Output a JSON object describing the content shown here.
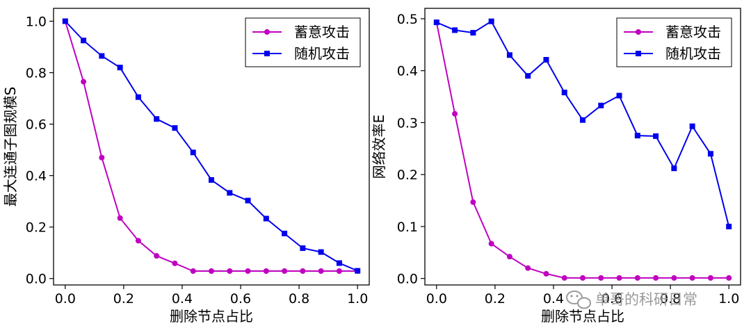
{
  "chart_data": [
    {
      "type": "line",
      "title": "",
      "xlabel": "删除节点占比",
      "ylabel": "最大连通子图规模S",
      "xlim": [
        -0.04,
        1.04
      ],
      "ylim": [
        -0.025,
        1.05
      ],
      "xticks": [
        0.0,
        0.2,
        0.4,
        0.6,
        0.8,
        1.0
      ],
      "xtick_labels": [
        "0.0",
        "0.2",
        "0.4",
        "0.6",
        "0.8",
        "1.0"
      ],
      "yticks": [
        0.0,
        0.2,
        0.4,
        0.6,
        0.8,
        1.0
      ],
      "ytick_labels": [
        "0.0",
        "0.2",
        "0.4",
        "0.6",
        "0.8",
        "1.0"
      ],
      "legend_position": "top-right",
      "series": [
        {
          "name": "蓄意攻击",
          "color": "#c000c0",
          "marker": "circle",
          "x": [
            0.0,
            0.0625,
            0.125,
            0.1875,
            0.25,
            0.3125,
            0.375,
            0.4375,
            0.5,
            0.5625,
            0.625,
            0.6875,
            0.75,
            0.8125,
            0.875,
            0.9375,
            1.0
          ],
          "y": [
            1.0,
            0.765,
            0.47,
            0.235,
            0.147,
            0.088,
            0.059,
            0.029,
            0.029,
            0.029,
            0.029,
            0.029,
            0.029,
            0.029,
            0.029,
            0.029,
            0.029
          ]
        },
        {
          "name": "随机攻击",
          "color": "#0000ee",
          "marker": "square",
          "x": [
            0.0,
            0.0625,
            0.125,
            0.1875,
            0.25,
            0.3125,
            0.375,
            0.4375,
            0.5,
            0.5625,
            0.625,
            0.6875,
            0.75,
            0.8125,
            0.875,
            0.9375,
            1.0
          ],
          "y": [
            1.0,
            0.925,
            0.865,
            0.82,
            0.705,
            0.62,
            0.585,
            0.49,
            0.383,
            0.333,
            0.303,
            0.233,
            0.175,
            0.118,
            0.103,
            0.06,
            0.03
          ]
        }
      ]
    },
    {
      "type": "line",
      "title": "",
      "xlabel": "删除节点占比",
      "ylabel": "网络效率E",
      "xlim": [
        -0.04,
        1.04
      ],
      "ylim": [
        -0.0125,
        0.52
      ],
      "xticks": [
        0.0,
        0.2,
        0.4,
        0.6,
        0.8,
        1.0
      ],
      "xtick_labels": [
        "0.0",
        "0.2",
        "0.4",
        "0.6",
        "0.8",
        "1.0"
      ],
      "yticks": [
        0.0,
        0.1,
        0.2,
        0.3,
        0.4,
        0.5
      ],
      "ytick_labels": [
        "0.0",
        "0.1",
        "0.2",
        "0.3",
        "0.4",
        "0.5"
      ],
      "legend_position": "top-right",
      "series": [
        {
          "name": "蓄意攻击",
          "color": "#c000c0",
          "marker": "circle",
          "x": [
            0.0,
            0.0625,
            0.125,
            0.1875,
            0.25,
            0.3125,
            0.375,
            0.4375,
            0.5,
            0.5625,
            0.625,
            0.6875,
            0.75,
            0.8125,
            0.875,
            0.9375,
            1.0
          ],
          "y": [
            0.493,
            0.317,
            0.147,
            0.067,
            0.042,
            0.02,
            0.009,
            0.001,
            0.001,
            0.001,
            0.001,
            0.001,
            0.001,
            0.001,
            0.001,
            0.001,
            0.001
          ]
        },
        {
          "name": "随机攻击",
          "color": "#0000ee",
          "marker": "square",
          "x": [
            0.0,
            0.0625,
            0.125,
            0.1875,
            0.25,
            0.3125,
            0.375,
            0.4375,
            0.5,
            0.5625,
            0.625,
            0.6875,
            0.75,
            0.8125,
            0.875,
            0.9375,
            1.0
          ],
          "y": [
            0.493,
            0.478,
            0.473,
            0.495,
            0.43,
            0.39,
            0.421,
            0.358,
            0.305,
            0.333,
            0.352,
            0.275,
            0.274,
            0.212,
            0.293,
            0.24,
            0.1
          ]
        }
      ]
    }
  ],
  "watermark": {
    "text": "单哥的科研日常",
    "icon": "wechat-icon"
  }
}
